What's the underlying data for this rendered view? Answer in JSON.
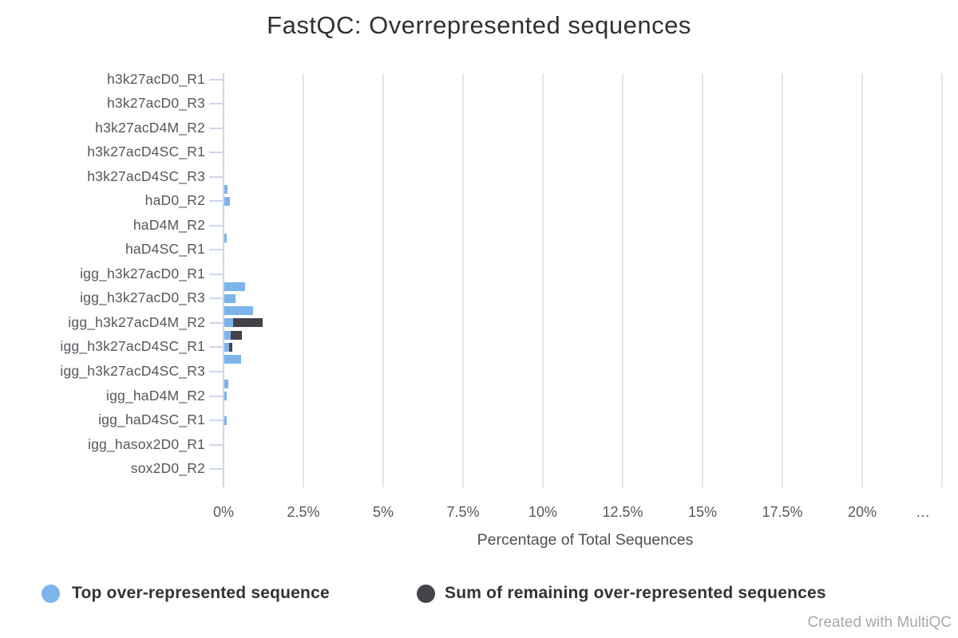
{
  "page": {
    "watermark": "Created with MultiQC"
  },
  "chart_data": {
    "type": "bar",
    "orientation": "horizontal",
    "stacked": true,
    "title": "FastQC: Overrepresented sequences",
    "xlabel": "Percentage of Total Sequences",
    "ylabel": "",
    "xlim": [
      0,
      22.65
    ],
    "grid": true,
    "grid_interval": 2.5,
    "legend_position": "bottom",
    "colors": {
      "top_series": "#7cb5ec",
      "remaining_series": "#434348",
      "gridline": "#e5e5e5",
      "axis": "#ccd6e8",
      "tick_text": "#54585e",
      "title_text": "#2f3136"
    },
    "series": [
      {
        "key": "top",
        "name": "Top over-represented sequence",
        "color": "#7cb5ec"
      },
      {
        "key": "remaining",
        "name": "Sum of remaining over-represented sequences",
        "color": "#434348"
      }
    ],
    "x_ticks": [
      {
        "label": "0%",
        "value": 0
      },
      {
        "label": "2.5%",
        "value": 2.5
      },
      {
        "label": "5%",
        "value": 5
      },
      {
        "label": "7.5%",
        "value": 7.5
      },
      {
        "label": "10%",
        "value": 10
      },
      {
        "label": "12.5%",
        "value": 12.5
      },
      {
        "label": "15%",
        "value": 15
      },
      {
        "label": "17.5%",
        "value": 17.5
      },
      {
        "label": "20%",
        "value": 20
      },
      {
        "label": "…",
        "value": 21.9
      }
    ],
    "rows": [
      {
        "label": "h3k27acD0_R1",
        "top": 0,
        "remaining": 0
      },
      {
        "label": "",
        "top": 0,
        "remaining": 0
      },
      {
        "label": "h3k27acD0_R3",
        "top": 0,
        "remaining": 0
      },
      {
        "label": "",
        "top": 0,
        "remaining": 0
      },
      {
        "label": "h3k27acD4M_R2",
        "top": 0,
        "remaining": 0
      },
      {
        "label": "",
        "top": 0,
        "remaining": 0
      },
      {
        "label": "h3k27acD4SC_R1",
        "top": 0,
        "remaining": 0
      },
      {
        "label": "",
        "top": 0,
        "remaining": 0
      },
      {
        "label": "h3k27acD4SC_R3",
        "top": 0,
        "remaining": 0
      },
      {
        "label": "",
        "top": 0.1,
        "remaining": 0
      },
      {
        "label": "haD0_R2",
        "top": 0.18,
        "remaining": 0
      },
      {
        "label": "",
        "top": 0,
        "remaining": 0
      },
      {
        "label": "haD4M_R2",
        "top": 0,
        "remaining": 0
      },
      {
        "label": "",
        "top": 0.07,
        "remaining": 0
      },
      {
        "label": "haD4SC_R1",
        "top": 0,
        "remaining": 0
      },
      {
        "label": "",
        "top": 0,
        "remaining": 0
      },
      {
        "label": "igg_h3k27acD0_R1",
        "top": 0,
        "remaining": 0
      },
      {
        "label": "",
        "top": 0.65,
        "remaining": 0
      },
      {
        "label": "igg_h3k27acD0_R3",
        "top": 0.35,
        "remaining": 0
      },
      {
        "label": "",
        "top": 0.9,
        "remaining": 0
      },
      {
        "label": "igg_h3k27acD4M_R2",
        "top": 0.28,
        "remaining": 0.92
      },
      {
        "label": "",
        "top": 0.19,
        "remaining": 0.36
      },
      {
        "label": "igg_h3k27acD4SC_R1",
        "top": 0.15,
        "remaining": 0.1
      },
      {
        "label": "",
        "top": 0.52,
        "remaining": 0
      },
      {
        "label": "igg_h3k27acD4SC_R3",
        "top": 0,
        "remaining": 0
      },
      {
        "label": "",
        "top": 0.13,
        "remaining": 0
      },
      {
        "label": "igg_haD4M_R2",
        "top": 0.07,
        "remaining": 0
      },
      {
        "label": "",
        "top": 0,
        "remaining": 0
      },
      {
        "label": "igg_haD4SC_R1",
        "top": 0.08,
        "remaining": 0
      },
      {
        "label": "",
        "top": 0,
        "remaining": 0
      },
      {
        "label": "igg_hasox2D0_R1",
        "top": 0,
        "remaining": 0
      },
      {
        "label": "",
        "top": 0,
        "remaining": 0
      },
      {
        "label": "sox2D0_R2",
        "top": 0,
        "remaining": 0
      },
      {
        "label": "",
        "top": 0,
        "remaining": 0
      }
    ]
  }
}
